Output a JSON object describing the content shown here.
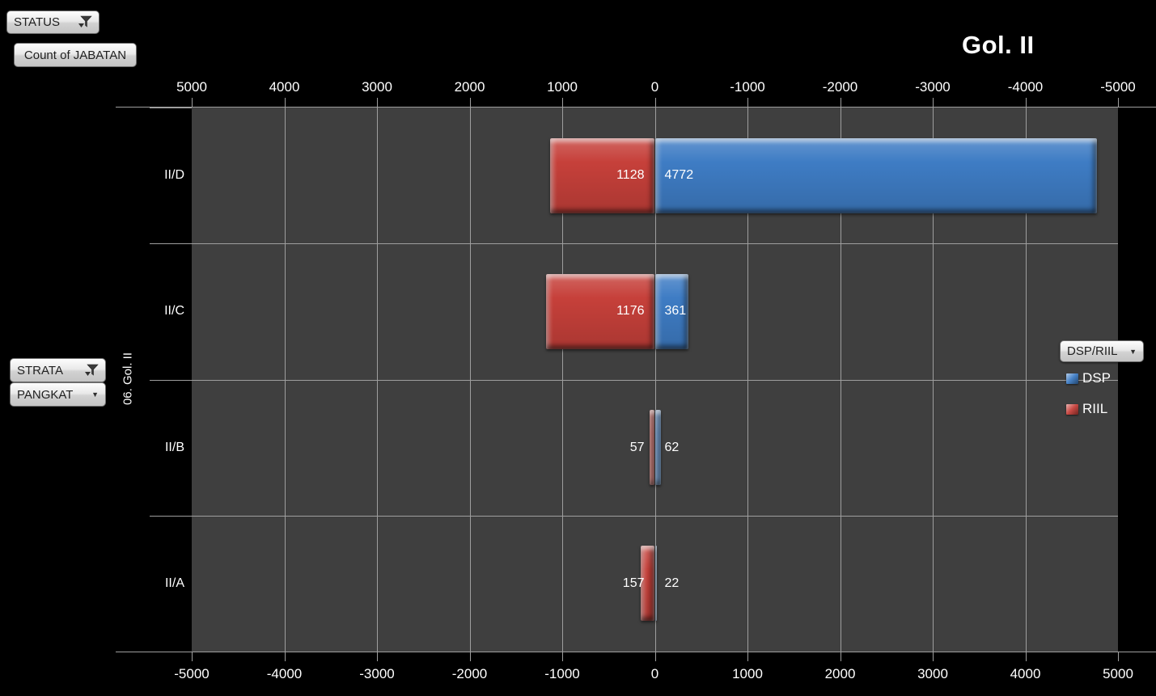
{
  "title": "Gol. II",
  "buttons": {
    "status": "STATUS",
    "count_of_jabatan": "Count of JABATAN",
    "strata": "STRATA",
    "pangkat": "PANGKAT",
    "legend_field": "DSP/RIIL"
  },
  "axis_title": "06. Gol. II",
  "chart_data": {
    "type": "bar",
    "subtype": "diverging-horizontal-tornado",
    "title": "Gol. II",
    "category_axis_title": "06. Gol. II",
    "categories": [
      "II/D",
      "II/C",
      "II/B",
      "II/A"
    ],
    "series": [
      {
        "name": "DSP",
        "side": "right",
        "color": "#3E7CC4",
        "values": [
          4772,
          361,
          62,
          22
        ]
      },
      {
        "name": "RIIL",
        "side": "left",
        "color": "#C6403A",
        "values": [
          1128,
          1176,
          57,
          157
        ]
      }
    ],
    "value_axis": {
      "max": 5000,
      "step": 1000,
      "top_ticks": [
        "5000",
        "4000",
        "3000",
        "2000",
        "1000",
        "0",
        "-1000",
        "-2000",
        "-3000",
        "-4000",
        "-5000"
      ],
      "bottom_ticks": [
        "-5000",
        "-4000",
        "-3000",
        "-2000",
        "-1000",
        "0",
        "1000",
        "2000",
        "3000",
        "4000",
        "5000"
      ]
    },
    "gridlines": true,
    "legend_position": "right"
  },
  "legend": {
    "items": [
      {
        "label": "DSP",
        "color": "#3E7CC4"
      },
      {
        "label": "RIIL",
        "color": "#C6403A"
      }
    ]
  },
  "colors": {
    "background": "#000000",
    "plot_background": "#3F3F3F",
    "gridline": "#9E9E9E",
    "text": "#FFFFFF",
    "dsp": "#3E7CC4",
    "riil": "#C6403A",
    "button_face": "#E5E5E5"
  }
}
